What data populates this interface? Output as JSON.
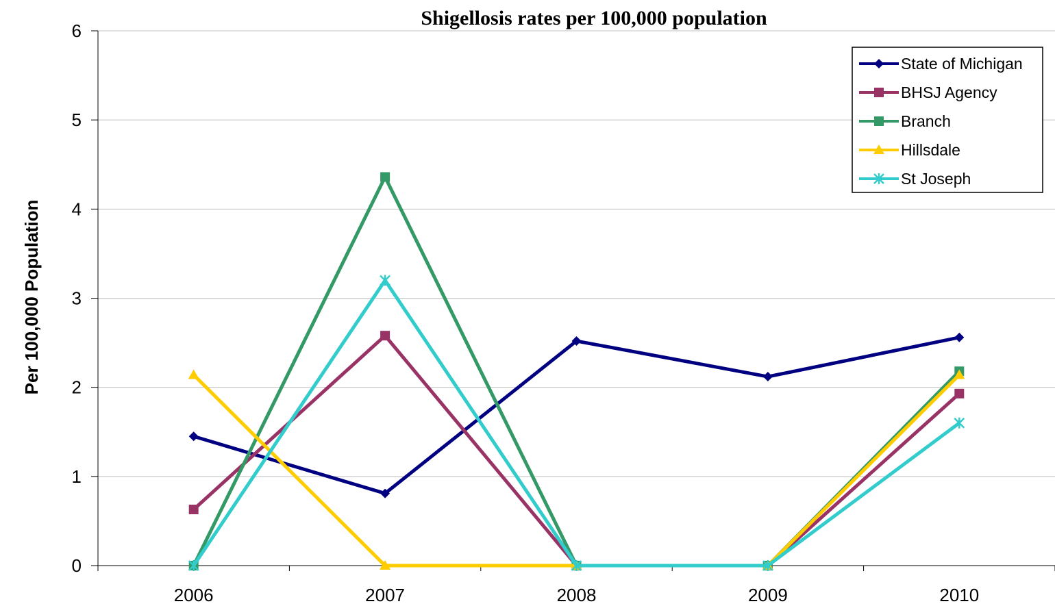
{
  "chart_data": {
    "type": "line",
    "title": "Shigellosis rates per 100,000 population",
    "xlabel": "",
    "ylabel": "Per 100,000 Population",
    "categories": [
      "2006",
      "2007",
      "2008",
      "2009",
      "2010"
    ],
    "ylim": [
      0,
      6
    ],
    "yticks": [
      "0",
      "1",
      "2",
      "3",
      "4",
      "5",
      "6"
    ],
    "grid": true,
    "legend_position": "top-right",
    "series": [
      {
        "name": "State of Michigan",
        "color": "#000080",
        "marker": "diamond",
        "values": [
          1.45,
          0.81,
          2.52,
          2.12,
          2.56
        ]
      },
      {
        "name": "BHSJ Agency",
        "color": "#993366",
        "marker": "square",
        "values": [
          0.63,
          2.58,
          0,
          0,
          1.93
        ]
      },
      {
        "name": "Branch",
        "color": "#339966",
        "marker": "square",
        "values": [
          0,
          4.36,
          0,
          0,
          2.18
        ]
      },
      {
        "name": "Hillsdale",
        "color": "#FFCC00",
        "marker": "triangle",
        "values": [
          2.14,
          0,
          0,
          0,
          2.14
        ]
      },
      {
        "name": "St Joseph",
        "color": "#33CCCC",
        "marker": "x",
        "values": [
          0,
          3.2,
          0,
          0,
          1.6
        ]
      }
    ]
  }
}
